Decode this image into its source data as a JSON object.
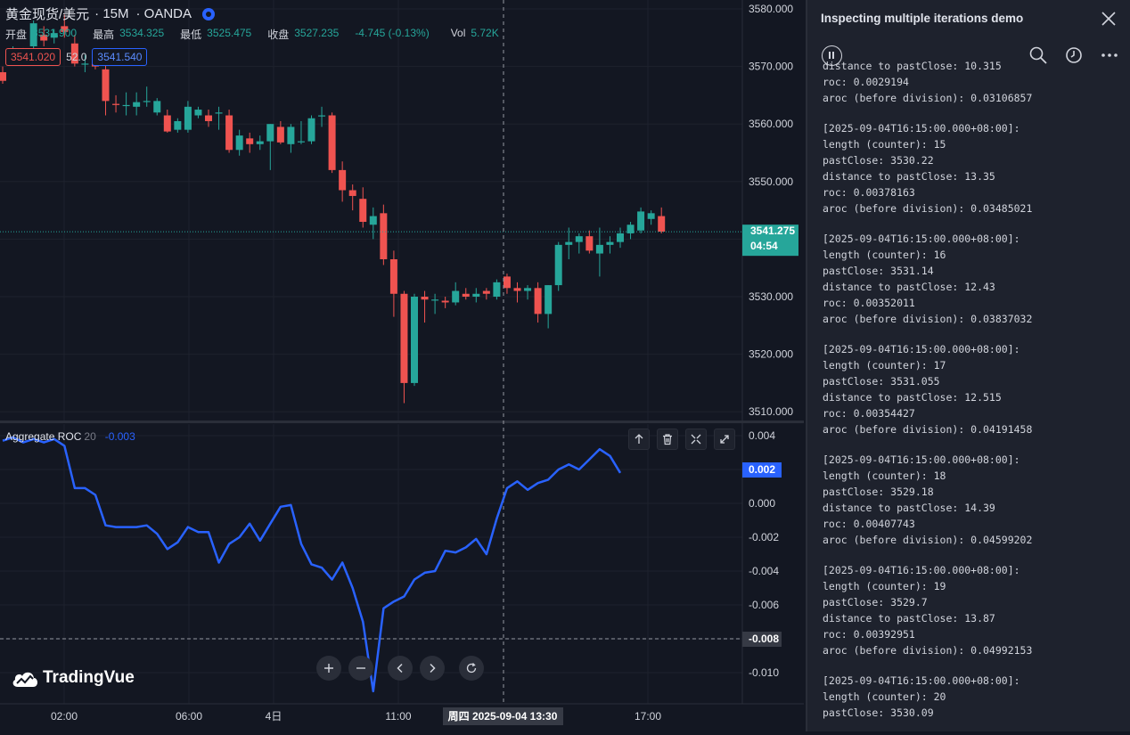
{
  "header": {
    "symbol": "黄金现货/美元",
    "interval": "· 15M",
    "source": "· OANDA",
    "open_label": "开盘",
    "open": "3531.900",
    "high_label": "最高",
    "high": "3534.325",
    "low_label": "最低",
    "low": "3525.475",
    "close_label": "收盘",
    "close": "3527.235",
    "change": "-4.745 (-0.13%)",
    "vol_label": "Vol",
    "vol": "5.72K",
    "bid": "3541.020",
    "spread": "52.0",
    "ask": "3541.540"
  },
  "indicator": {
    "name": "Aggregate ROC",
    "param": "20",
    "value": "-0.003"
  },
  "logo_text": "TradingVue",
  "colors": {
    "up": "#26a69a",
    "down": "#ef5350",
    "roc": "#2962ff",
    "bg": "#131722",
    "panel": "#1e222d"
  },
  "chart_data": [
    {
      "type": "candlestick",
      "title": "黄金现货/美元 · 15M · OANDA",
      "y_ticks": [
        "3580.000",
        "3570.000",
        "3560.000",
        "3550.000",
        "3540.000",
        "3530.000",
        "3520.000",
        "3510.000"
      ],
      "ylim": [
        3508.5,
        3581.5
      ],
      "x_ticks": [
        "02:00",
        "06:00",
        "4日",
        "11:00",
        "17:00"
      ],
      "last_price": "3541.275",
      "countdown": "04:54",
      "crosshair_label": "周四 2025-09-04 13:30",
      "candles": [
        {
          "o": 3569.0,
          "h": 3570.0,
          "l": 3567.0,
          "c": 3567.5
        },
        {
          "o": 3572.3,
          "h": 3573.5,
          "l": 3571.5,
          "c": 3572.8
        },
        {
          "o": 3572.5,
          "h": 3573.2,
          "l": 3571.8,
          "c": 3572.2
        },
        {
          "o": 3573.5,
          "h": 3578.0,
          "l": 3572.5,
          "c": 3577.5
        },
        {
          "o": 3575.5,
          "h": 3577.0,
          "l": 3573.5,
          "c": 3574.5
        },
        {
          "o": 3575.0,
          "h": 3576.5,
          "l": 3574.0,
          "c": 3575.8
        },
        {
          "o": 3577.0,
          "h": 3579.0,
          "l": 3575.0,
          "c": 3576.0
        },
        {
          "o": 3574.0,
          "h": 3575.5,
          "l": 3570.0,
          "c": 3570.5
        },
        {
          "o": 3570.5,
          "h": 3572.0,
          "l": 3569.0,
          "c": 3570.5
        },
        {
          "o": 3570.5,
          "h": 3571.0,
          "l": 3569.5,
          "c": 3570.0
        },
        {
          "o": 3569.5,
          "h": 3570.5,
          "l": 3561.5,
          "c": 3564.0
        },
        {
          "o": 3563.5,
          "h": 3565.0,
          "l": 3562.0,
          "c": 3563.3
        },
        {
          "o": 3563.3,
          "h": 3565.5,
          "l": 3561.5,
          "c": 3563.3
        },
        {
          "o": 3563.0,
          "h": 3565.5,
          "l": 3561.5,
          "c": 3563.8
        },
        {
          "o": 3564.0,
          "h": 3566.5,
          "l": 3563.0,
          "c": 3564.0
        },
        {
          "o": 3562.0,
          "h": 3564.5,
          "l": 3561.5,
          "c": 3564.0
        },
        {
          "o": 3561.5,
          "h": 3562.5,
          "l": 3558.5,
          "c": 3558.7
        },
        {
          "o": 3559.0,
          "h": 3561.0,
          "l": 3558.5,
          "c": 3560.5
        },
        {
          "o": 3559.0,
          "h": 3564.0,
          "l": 3558.5,
          "c": 3563.0
        },
        {
          "o": 3561.5,
          "h": 3563.0,
          "l": 3561.0,
          "c": 3562.5
        },
        {
          "o": 3561.5,
          "h": 3562.5,
          "l": 3559.5,
          "c": 3560.5
        },
        {
          "o": 3562.0,
          "h": 3563.0,
          "l": 3559.0,
          "c": 3562.0
        },
        {
          "o": 3561.5,
          "h": 3562.5,
          "l": 3555.0,
          "c": 3555.5
        },
        {
          "o": 3555.5,
          "h": 3559.0,
          "l": 3554.5,
          "c": 3558.0
        },
        {
          "o": 3557.5,
          "h": 3558.5,
          "l": 3555.0,
          "c": 3556.5
        },
        {
          "o": 3556.5,
          "h": 3558.0,
          "l": 3555.5,
          "c": 3557.0
        },
        {
          "o": 3557.0,
          "h": 3560.0,
          "l": 3552.0,
          "c": 3560.0
        },
        {
          "o": 3559.5,
          "h": 3560.5,
          "l": 3556.5,
          "c": 3556.8
        },
        {
          "o": 3556.5,
          "h": 3560.0,
          "l": 3555.0,
          "c": 3559.5
        },
        {
          "o": 3557.0,
          "h": 3560.5,
          "l": 3556.5,
          "c": 3557.0
        },
        {
          "o": 3557.0,
          "h": 3561.5,
          "l": 3556.5,
          "c": 3561.0
        },
        {
          "o": 3561.5,
          "h": 3563.0,
          "l": 3559.5,
          "c": 3561.5
        },
        {
          "o": 3561.5,
          "h": 3562.0,
          "l": 3551.5,
          "c": 3552.0
        },
        {
          "o": 3552.0,
          "h": 3553.5,
          "l": 3546.5,
          "c": 3548.5
        },
        {
          "o": 3548.5,
          "h": 3549.5,
          "l": 3545.0,
          "c": 3547.5
        },
        {
          "o": 3547.0,
          "h": 3549.0,
          "l": 3542.0,
          "c": 3543.0
        },
        {
          "o": 3542.5,
          "h": 3545.5,
          "l": 3540.0,
          "c": 3544.0
        },
        {
          "o": 3544.5,
          "h": 3546.0,
          "l": 3535.5,
          "c": 3536.5
        },
        {
          "o": 3536.5,
          "h": 3538.0,
          "l": 3526.5,
          "c": 3530.5
        },
        {
          "o": 3530.5,
          "h": 3531.0,
          "l": 3511.5,
          "c": 3515.0
        },
        {
          "o": 3515.0,
          "h": 3530.5,
          "l": 3514.5,
          "c": 3530.0
        },
        {
          "o": 3530.0,
          "h": 3531.0,
          "l": 3525.5,
          "c": 3529.5
        },
        {
          "o": 3529.5,
          "h": 3530.5,
          "l": 3527.0,
          "c": 3529.5
        },
        {
          "o": 3529.3,
          "h": 3530.0,
          "l": 3528.0,
          "c": 3529.0
        },
        {
          "o": 3529.0,
          "h": 3532.5,
          "l": 3528.5,
          "c": 3531.0
        },
        {
          "o": 3530.5,
          "h": 3531.5,
          "l": 3529.5,
          "c": 3530.0
        },
        {
          "o": 3530.0,
          "h": 3531.5,
          "l": 3529.0,
          "c": 3530.5
        },
        {
          "o": 3531.0,
          "h": 3531.5,
          "l": 3529.5,
          "c": 3530.5
        },
        {
          "o": 3530.0,
          "h": 3533.0,
          "l": 3529.5,
          "c": 3532.5
        },
        {
          "o": 3533.5,
          "h": 3534.0,
          "l": 3530.5,
          "c": 3531.5
        },
        {
          "o": 3531.5,
          "h": 3532.5,
          "l": 3529.0,
          "c": 3531.0
        },
        {
          "o": 3531.0,
          "h": 3532.0,
          "l": 3529.5,
          "c": 3531.5
        },
        {
          "o": 3531.5,
          "h": 3532.5,
          "l": 3525.5,
          "c": 3527.0
        },
        {
          "o": 3527.0,
          "h": 3532.0,
          "l": 3524.5,
          "c": 3532.0
        },
        {
          "o": 3532.0,
          "h": 3539.5,
          "l": 3531.0,
          "c": 3539.0
        },
        {
          "o": 3539.0,
          "h": 3542.0,
          "l": 3536.5,
          "c": 3539.5
        },
        {
          "o": 3539.5,
          "h": 3541.0,
          "l": 3537.5,
          "c": 3540.5
        },
        {
          "o": 3540.5,
          "h": 3541.5,
          "l": 3537.5,
          "c": 3538.0
        },
        {
          "o": 3537.5,
          "h": 3542.0,
          "l": 3533.5,
          "c": 3539.0
        },
        {
          "o": 3539.0,
          "h": 3540.5,
          "l": 3537.5,
          "c": 3539.5
        },
        {
          "o": 3539.5,
          "h": 3542.0,
          "l": 3538.5,
          "c": 3541.0
        },
        {
          "o": 3541.0,
          "h": 3543.0,
          "l": 3540.0,
          "c": 3542.5
        },
        {
          "o": 3541.5,
          "h": 3545.5,
          "l": 3541.0,
          "c": 3544.8
        },
        {
          "o": 3543.5,
          "h": 3545.0,
          "l": 3542.5,
          "c": 3544.5
        },
        {
          "o": 3544.0,
          "h": 3545.5,
          "l": 3541.0,
          "c": 3541.3
        }
      ]
    },
    {
      "type": "line",
      "title": "Aggregate ROC 20",
      "y_ticks": [
        "0.004",
        "0.002",
        "0.000",
        "-0.002",
        "-0.004",
        "-0.006",
        "-0.008",
        "-0.010"
      ],
      "ylim": [
        -0.0111,
        0.0043
      ],
      "current_label": "0.002",
      "hover_label": "-0.008",
      "series": [
        {
          "values": [
            0.0037,
            0.0039,
            0.0036,
            0.0038,
            0.0036,
            0.0038,
            0.0034,
            0.0009,
            0.0009,
            0.0005,
            -0.0013,
            -0.0014,
            -0.0014,
            -0.0014,
            -0.0013,
            -0.0018,
            -0.0027,
            -0.0023,
            -0.0014,
            -0.0017,
            -0.0017,
            -0.0035,
            -0.0024,
            -0.002,
            -0.0012,
            -0.0022,
            -0.0012,
            -0.0002,
            -0.0001,
            -0.0024,
            -0.0036,
            -0.0038,
            -0.0045,
            -0.0035,
            -0.005,
            -0.007,
            -0.0111,
            -0.0062,
            -0.0058,
            -0.0055,
            -0.0045,
            -0.0041,
            -0.004,
            -0.0028,
            -0.0029,
            -0.0026,
            -0.0021,
            -0.003,
            -0.0009,
            0.0009,
            0.0013,
            0.0008,
            0.0012,
            0.0014,
            0.002,
            0.0023,
            0.002,
            0.0026,
            0.0032,
            0.0028,
            0.0018
          ]
        }
      ]
    }
  ],
  "panel": {
    "title": "Inspecting multiple iterations demo",
    "log_top": [
      "distance to pastClose: 10.315",
      "roc: 0.0029194",
      "aroc (before division): 0.03106857"
    ],
    "log_blocks": [
      [
        "[2025-09-04T16:15:00.000+08:00]:",
        "length (counter): 15",
        "pastClose: 3530.22",
        "distance to pastClose: 13.35",
        "roc: 0.00378163",
        "aroc (before division): 0.03485021"
      ],
      [
        "[2025-09-04T16:15:00.000+08:00]:",
        "length (counter): 16",
        "pastClose: 3531.14",
        "distance to pastClose: 12.43",
        "roc: 0.00352011",
        "aroc (before division): 0.03837032"
      ],
      [
        "[2025-09-04T16:15:00.000+08:00]:",
        "length (counter): 17",
        "pastClose: 3531.055",
        "distance to pastClose: 12.515",
        "roc: 0.00354427",
        "aroc (before division): 0.04191458"
      ],
      [
        "[2025-09-04T16:15:00.000+08:00]:",
        "length (counter): 18",
        "pastClose: 3529.18",
        "distance to pastClose: 14.39",
        "roc: 0.00407743",
        "aroc (before division): 0.04599202"
      ],
      [
        "[2025-09-04T16:15:00.000+08:00]:",
        "length (counter): 19",
        "pastClose: 3529.7",
        "distance to pastClose: 13.87",
        "roc: 0.00392951",
        "aroc (before division): 0.04992153"
      ],
      [
        "[2025-09-04T16:15:00.000+08:00]:",
        "length (counter): 20",
        "pastClose: 3530.09"
      ]
    ]
  }
}
